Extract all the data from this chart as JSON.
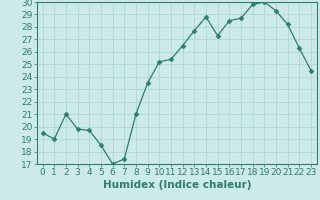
{
  "x": [
    0,
    1,
    2,
    3,
    4,
    5,
    6,
    7,
    8,
    9,
    10,
    11,
    12,
    13,
    14,
    15,
    16,
    17,
    18,
    19,
    20,
    21,
    22,
    23
  ],
  "y": [
    19.5,
    19.0,
    21.0,
    19.8,
    19.7,
    18.5,
    17.0,
    17.4,
    21.0,
    23.5,
    25.2,
    25.4,
    26.5,
    27.7,
    28.8,
    27.3,
    28.5,
    28.7,
    29.8,
    30.0,
    29.3,
    28.2,
    26.3,
    24.5
  ],
  "line_color": "#2e7d6e",
  "marker": "D",
  "marker_size": 2.5,
  "bg_color": "#cceae7",
  "grid_color": "#b0d8d4",
  "xlabel": "Humidex (Indice chaleur)",
  "xlim": [
    -0.5,
    23.5
  ],
  "ylim": [
    17,
    30
  ],
  "yticks": [
    17,
    18,
    19,
    20,
    21,
    22,
    23,
    24,
    25,
    26,
    27,
    28,
    29,
    30
  ],
  "xticks": [
    0,
    1,
    2,
    3,
    4,
    5,
    6,
    7,
    8,
    9,
    10,
    11,
    12,
    13,
    14,
    15,
    16,
    17,
    18,
    19,
    20,
    21,
    22,
    23
  ],
  "tick_label_fontsize": 6.5,
  "xlabel_fontsize": 7.5,
  "tick_color": "#2e7d6e",
  "axis_color": "#2e7d6e",
  "grid_linewidth": 0.6
}
